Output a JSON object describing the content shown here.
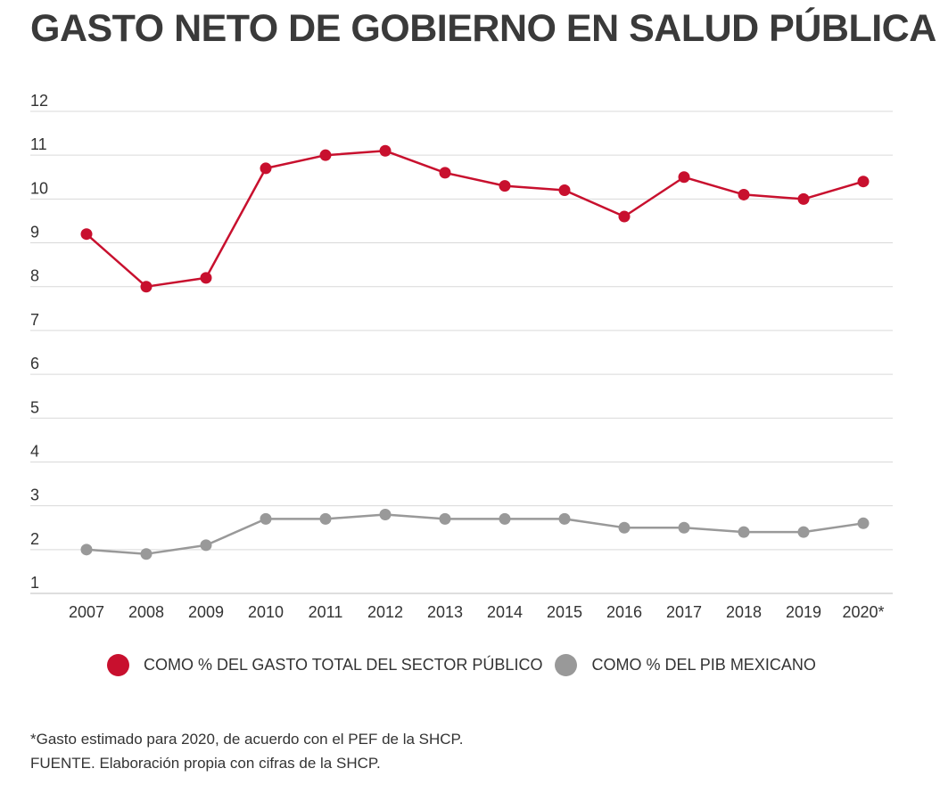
{
  "chart_data": {
    "type": "line",
    "title": "GASTO NETO DE GOBIERNO EN SALUD PÚBLICA",
    "categories": [
      "2007",
      "2008",
      "2009",
      "2010",
      "2011",
      "2012",
      "2013",
      "2014",
      "2015",
      "2016",
      "2017",
      "2018",
      "2019",
      "2020*"
    ],
    "ylim": [
      1,
      12
    ],
    "yticks": [
      "12",
      "11",
      "10",
      "9",
      "8",
      "7",
      "6",
      "5",
      "4",
      "3",
      "2",
      "1"
    ],
    "grid": true,
    "legend_position": "bottom",
    "series": [
      {
        "name": "COMO % DEL GASTO TOTAL DEL SECTOR PÚBLICO",
        "color": "#c8102e",
        "values": [
          9.2,
          8.0,
          8.2,
          10.7,
          11.0,
          11.1,
          10.6,
          10.3,
          10.2,
          9.6,
          10.5,
          10.1,
          10.0,
          10.4
        ]
      },
      {
        "name": "COMO % DEL PIB MEXICANO",
        "color": "#999999",
        "values": [
          2.0,
          1.9,
          2.1,
          2.7,
          2.7,
          2.8,
          2.7,
          2.7,
          2.7,
          2.5,
          2.5,
          2.4,
          2.4,
          2.6
        ]
      }
    ]
  },
  "notes": {
    "footnote": "*Gasto estimado para 2020, de acuerdo con el PEF de la SHCP.",
    "source": "FUENTE. Elaboración propia con cifras de la SHCP."
  }
}
